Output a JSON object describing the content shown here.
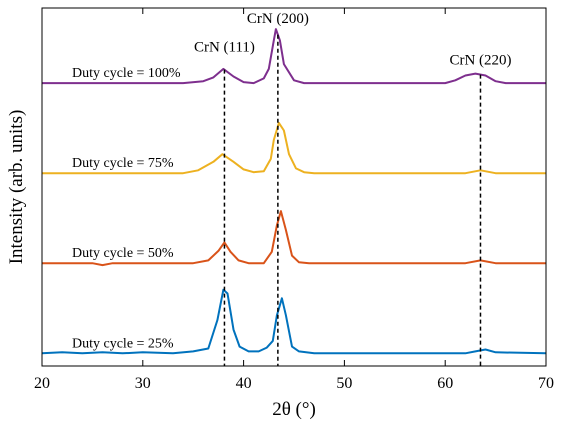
{
  "chart_data": {
    "type": "line",
    "xlabel": "2θ (°)",
    "ylabel": "Intensity (arb. units)",
    "xlim": [
      20,
      70
    ],
    "xticks": [
      20,
      30,
      40,
      50,
      60,
      70
    ],
    "yticks": [],
    "grid": false,
    "legend": "none",
    "series": [
      {
        "name": "Duty cycle = 100%",
        "color": "#7e2f8e",
        "baseline": 2.9,
        "points": [
          [
            20,
            2.9
          ],
          [
            30,
            2.9
          ],
          [
            34,
            2.9
          ],
          [
            36,
            2.92
          ],
          [
            37,
            2.96
          ],
          [
            38,
            3.05
          ],
          [
            39,
            2.97
          ],
          [
            40,
            2.91
          ],
          [
            41,
            2.9
          ],
          [
            42,
            2.95
          ],
          [
            42.5,
            3.05
          ],
          [
            43,
            3.35
          ],
          [
            43.2,
            3.47
          ],
          [
            43.6,
            3.35
          ],
          [
            44,
            3.1
          ],
          [
            45,
            2.93
          ],
          [
            46,
            2.9
          ],
          [
            60,
            2.9
          ],
          [
            61,
            2.93
          ],
          [
            62,
            2.98
          ],
          [
            63,
            3.0
          ],
          [
            64,
            2.98
          ],
          [
            65,
            2.92
          ],
          [
            66,
            2.9
          ],
          [
            70,
            2.9
          ]
        ]
      },
      {
        "name": "Duty cycle = 75%",
        "color": "#edb120",
        "baseline": 1.95,
        "points": [
          [
            20,
            1.95
          ],
          [
            34,
            1.95
          ],
          [
            35.5,
            1.98
          ],
          [
            37,
            2.07
          ],
          [
            37.9,
            2.15
          ],
          [
            39,
            2.07
          ],
          [
            40,
            1.99
          ],
          [
            41,
            1.96
          ],
          [
            42,
            1.97
          ],
          [
            42.7,
            2.1
          ],
          [
            43,
            2.3
          ],
          [
            43.5,
            2.48
          ],
          [
            44,
            2.4
          ],
          [
            44.5,
            2.15
          ],
          [
            45.2,
            2.0
          ],
          [
            46,
            1.96
          ],
          [
            47,
            1.95
          ],
          [
            62,
            1.95
          ],
          [
            63.5,
            1.98
          ],
          [
            65,
            1.95
          ],
          [
            70,
            1.95
          ]
        ]
      },
      {
        "name": "Duty cycle = 50%",
        "color": "#d95319",
        "baseline": 1.0,
        "points": [
          [
            20,
            1.0
          ],
          [
            25,
            1.0
          ],
          [
            26,
            0.98
          ],
          [
            27,
            1.0
          ],
          [
            35,
            1.0
          ],
          [
            36.5,
            1.03
          ],
          [
            37.5,
            1.13
          ],
          [
            38.1,
            1.22
          ],
          [
            38.7,
            1.12
          ],
          [
            39.5,
            1.03
          ],
          [
            40.5,
            1.0
          ],
          [
            42,
            1.0
          ],
          [
            42.8,
            1.12
          ],
          [
            43.3,
            1.4
          ],
          [
            43.7,
            1.55
          ],
          [
            44.2,
            1.35
          ],
          [
            44.8,
            1.08
          ],
          [
            45.5,
            1.01
          ],
          [
            46.5,
            1.0
          ],
          [
            62,
            1.0
          ],
          [
            63.5,
            1.03
          ],
          [
            65,
            1.0
          ],
          [
            70,
            1.0
          ]
        ]
      },
      {
        "name": "Duty cycle = 25%",
        "color": "#0072bd",
        "baseline": 0.05,
        "points": [
          [
            20,
            0.05
          ],
          [
            22,
            0.06
          ],
          [
            24,
            0.05
          ],
          [
            26,
            0.06
          ],
          [
            28,
            0.05
          ],
          [
            30,
            0.06
          ],
          [
            33,
            0.05
          ],
          [
            35,
            0.07
          ],
          [
            36.5,
            0.1
          ],
          [
            37.4,
            0.4
          ],
          [
            38,
            0.72
          ],
          [
            38.4,
            0.68
          ],
          [
            39,
            0.3
          ],
          [
            39.6,
            0.12
          ],
          [
            40.5,
            0.07
          ],
          [
            41.5,
            0.07
          ],
          [
            42.3,
            0.11
          ],
          [
            42.9,
            0.18
          ],
          [
            43.3,
            0.45
          ],
          [
            43.8,
            0.63
          ],
          [
            44.2,
            0.45
          ],
          [
            44.8,
            0.12
          ],
          [
            45.5,
            0.07
          ],
          [
            47,
            0.05
          ],
          [
            55,
            0.05
          ],
          [
            62,
            0.05
          ],
          [
            63,
            0.07
          ],
          [
            64,
            0.09
          ],
          [
            65,
            0.06
          ],
          [
            70,
            0.05
          ]
        ]
      }
    ],
    "annotations": {
      "series_labels": [
        "Duty cycle = 100%",
        "Duty cycle = 75%",
        "Duty cycle = 50%",
        "Duty cycle = 25%"
      ],
      "peaks": [
        {
          "label": "CrN (111)",
          "x": 38.1
        },
        {
          "label": "CrN (200)",
          "x": 43.4
        },
        {
          "label": "CrN (220)",
          "x": 63.5
        }
      ]
    }
  }
}
